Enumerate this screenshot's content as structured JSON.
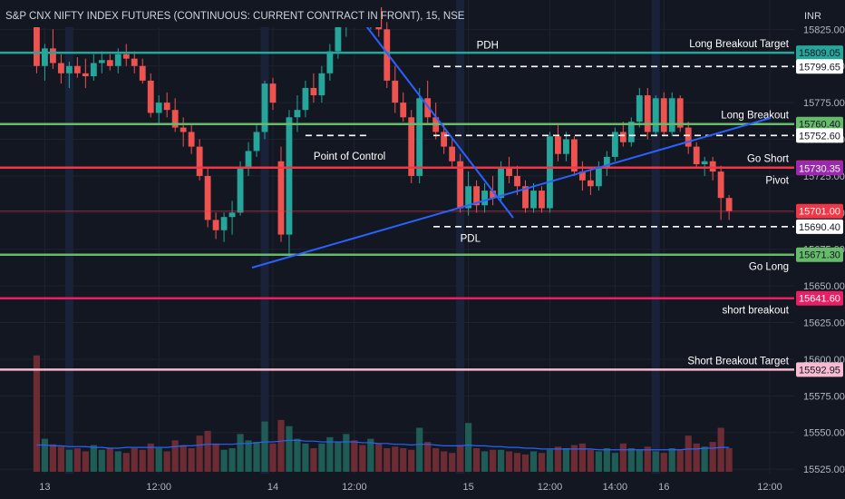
{
  "chart_data": {
    "type": "candlestick",
    "title": "S&P CNX NIFTY INDEX FUTURES (CONTINUOUS: CURRENT CONTRACT IN FRONT), 15, NSE",
    "currency": "INR",
    "y_ticks": [
      15525,
      15550,
      15575,
      15600,
      15625,
      15650,
      15675,
      15700,
      15725,
      15750,
      15775,
      15800,
      15825
    ],
    "ylim": [
      15522,
      15845
    ],
    "x_ticks": [
      {
        "label": "13",
        "i": 1
      },
      {
        "label": "12:00",
        "i": 15
      },
      {
        "label": "14",
        "i": 29
      },
      {
        "label": "12:00",
        "i": 39
      },
      {
        "label": "15",
        "i": 53
      },
      {
        "label": "12:00",
        "i": 63
      },
      {
        "label": "14:00",
        "i": 71
      },
      {
        "label": "16",
        "i": 77
      },
      {
        "label": "12:00",
        "i": 90
      }
    ],
    "x_range": [
      -4.5,
      93
    ],
    "session_starts": [
      4,
      28,
      52,
      76
    ],
    "candles": [
      {
        "o": 15835,
        "h": 15845,
        "l": 15795,
        "c": 15800
      },
      {
        "o": 15800,
        "h": 15815,
        "l": 15790,
        "c": 15812
      },
      {
        "o": 15812,
        "h": 15825,
        "l": 15798,
        "c": 15802
      },
      {
        "o": 15802,
        "h": 15808,
        "l": 15788,
        "c": 15795
      },
      {
        "o": 15795,
        "h": 15803,
        "l": 15785,
        "c": 15800
      },
      {
        "o": 15800,
        "h": 15806,
        "l": 15792,
        "c": 15795
      },
      {
        "o": 15795,
        "h": 15805,
        "l": 15785,
        "c": 15793
      },
      {
        "o": 15793,
        "h": 15808,
        "l": 15790,
        "c": 15802
      },
      {
        "o": 15802,
        "h": 15810,
        "l": 15795,
        "c": 15804
      },
      {
        "o": 15804,
        "h": 15808,
        "l": 15797,
        "c": 15800
      },
      {
        "o": 15800,
        "h": 15812,
        "l": 15795,
        "c": 15808
      },
      {
        "o": 15808,
        "h": 15815,
        "l": 15800,
        "c": 15805
      },
      {
        "o": 15805,
        "h": 15810,
        "l": 15795,
        "c": 15800
      },
      {
        "o": 15800,
        "h": 15805,
        "l": 15788,
        "c": 15790
      },
      {
        "o": 15790,
        "h": 15795,
        "l": 15765,
        "c": 15768
      },
      {
        "o": 15768,
        "h": 15780,
        "l": 15760,
        "c": 15775
      },
      {
        "o": 15775,
        "h": 15782,
        "l": 15765,
        "c": 15770
      },
      {
        "o": 15770,
        "h": 15778,
        "l": 15755,
        "c": 15758
      },
      {
        "o": 15758,
        "h": 15765,
        "l": 15745,
        "c": 15755
      },
      {
        "o": 15755,
        "h": 15760,
        "l": 15740,
        "c": 15745
      },
      {
        "o": 15745,
        "h": 15750,
        "l": 15722,
        "c": 15725
      },
      {
        "o": 15725,
        "h": 15730,
        "l": 15690,
        "c": 15695
      },
      {
        "o": 15695,
        "h": 15700,
        "l": 15682,
        "c": 15688
      },
      {
        "o": 15688,
        "h": 15700,
        "l": 15680,
        "c": 15697
      },
      {
        "o": 15697,
        "h": 15708,
        "l": 15685,
        "c": 15700
      },
      {
        "o": 15700,
        "h": 15735,
        "l": 15698,
        "c": 15730
      },
      {
        "o": 15730,
        "h": 15748,
        "l": 15725,
        "c": 15742
      },
      {
        "o": 15742,
        "h": 15760,
        "l": 15738,
        "c": 15755
      },
      {
        "o": 15755,
        "h": 15790,
        "l": 15750,
        "c": 15788
      },
      {
        "o": 15788,
        "h": 15792,
        "l": 15770,
        "c": 15775
      },
      {
        "o": 15735,
        "h": 15745,
        "l": 15680,
        "c": 15685
      },
      {
        "o": 15685,
        "h": 15770,
        "l": 15670,
        "c": 15765
      },
      {
        "o": 15765,
        "h": 15780,
        "l": 15755,
        "c": 15770
      },
      {
        "o": 15770,
        "h": 15790,
        "l": 15765,
        "c": 15785
      },
      {
        "o": 15785,
        "h": 15795,
        "l": 15775,
        "c": 15780
      },
      {
        "o": 15780,
        "h": 15800,
        "l": 15775,
        "c": 15795
      },
      {
        "o": 15795,
        "h": 15815,
        "l": 15790,
        "c": 15810
      },
      {
        "o": 15810,
        "h": 15830,
        "l": 15805,
        "c": 15828
      },
      {
        "o": 15828,
        "h": 15848,
        "l": 15820,
        "c": 15845
      },
      {
        "o": 15845,
        "h": 15848,
        "l": 15835,
        "c": 15840
      },
      {
        "o": 15840,
        "h": 15848,
        "l": 15830,
        "c": 15835
      },
      {
        "o": 15835,
        "h": 15845,
        "l": 15825,
        "c": 15840
      },
      {
        "o": 15840,
        "h": 15846,
        "l": 15820,
        "c": 15825
      },
      {
        "o": 15825,
        "h": 15830,
        "l": 15785,
        "c": 15790
      },
      {
        "o": 15790,
        "h": 15800,
        "l": 15768,
        "c": 15775
      },
      {
        "o": 15775,
        "h": 15782,
        "l": 15762,
        "c": 15765
      },
      {
        "o": 15765,
        "h": 15770,
        "l": 15720,
        "c": 15725
      },
      {
        "o": 15725,
        "h": 15785,
        "l": 15720,
        "c": 15778
      },
      {
        "o": 15778,
        "h": 15790,
        "l": 15760,
        "c": 15765
      },
      {
        "o": 15765,
        "h": 15775,
        "l": 15750,
        "c": 15755
      },
      {
        "o": 15755,
        "h": 15760,
        "l": 15740,
        "c": 15745
      },
      {
        "o": 15745,
        "h": 15750,
        "l": 15730,
        "c": 15735
      },
      {
        "o": 15735,
        "h": 15740,
        "l": 15700,
        "c": 15703
      },
      {
        "o": 15703,
        "h": 15728,
        "l": 15698,
        "c": 15718
      },
      {
        "o": 15718,
        "h": 15722,
        "l": 15700,
        "c": 15705
      },
      {
        "o": 15705,
        "h": 15720,
        "l": 15700,
        "c": 15715
      },
      {
        "o": 15715,
        "h": 15725,
        "l": 15705,
        "c": 15710
      },
      {
        "o": 15710,
        "h": 15735,
        "l": 15708,
        "c": 15730
      },
      {
        "o": 15730,
        "h": 15738,
        "l": 15720,
        "c": 15725
      },
      {
        "o": 15725,
        "h": 15732,
        "l": 15712,
        "c": 15718
      },
      {
        "o": 15718,
        "h": 15722,
        "l": 15700,
        "c": 15703
      },
      {
        "o": 15703,
        "h": 15720,
        "l": 15700,
        "c": 15715
      },
      {
        "o": 15715,
        "h": 15718,
        "l": 15700,
        "c": 15703
      },
      {
        "o": 15703,
        "h": 15755,
        "l": 15700,
        "c": 15752
      },
      {
        "o": 15752,
        "h": 15760,
        "l": 15735,
        "c": 15740
      },
      {
        "o": 15740,
        "h": 15755,
        "l": 15735,
        "c": 15750
      },
      {
        "o": 15750,
        "h": 15752,
        "l": 15725,
        "c": 15728
      },
      {
        "o": 15728,
        "h": 15735,
        "l": 15715,
        "c": 15722
      },
      {
        "o": 15722,
        "h": 15730,
        "l": 15712,
        "c": 15718
      },
      {
        "o": 15718,
        "h": 15735,
        "l": 15715,
        "c": 15730
      },
      {
        "o": 15730,
        "h": 15742,
        "l": 15725,
        "c": 15738
      },
      {
        "o": 15738,
        "h": 15758,
        "l": 15735,
        "c": 15755
      },
      {
        "o": 15755,
        "h": 15762,
        "l": 15745,
        "c": 15748
      },
      {
        "o": 15748,
        "h": 15765,
        "l": 15745,
        "c": 15762
      },
      {
        "o": 15762,
        "h": 15785,
        "l": 15758,
        "c": 15780
      },
      {
        "o": 15780,
        "h": 15785,
        "l": 15750,
        "c": 15755
      },
      {
        "o": 15755,
        "h": 15780,
        "l": 15752,
        "c": 15778
      },
      {
        "o": 15778,
        "h": 15782,
        "l": 15752,
        "c": 15755
      },
      {
        "o": 15755,
        "h": 15782,
        "l": 15752,
        "c": 15778
      },
      {
        "o": 15778,
        "h": 15780,
        "l": 15755,
        "c": 15758
      },
      {
        "o": 15758,
        "h": 15762,
        "l": 15740,
        "c": 15745
      },
      {
        "o": 15745,
        "h": 15748,
        "l": 15730,
        "c": 15733
      },
      {
        "o": 15733,
        "h": 15738,
        "l": 15725,
        "c": 15735
      },
      {
        "o": 15735,
        "h": 15738,
        "l": 15722,
        "c": 15728
      },
      {
        "o": 15728,
        "h": 15732,
        "l": 15695,
        "c": 15710
      },
      {
        "o": 15710,
        "h": 15712,
        "l": 15695,
        "c": 15701
      }
    ],
    "volume": [
      148,
      42,
      35,
      32,
      28,
      30,
      26,
      34,
      28,
      30,
      26,
      24,
      30,
      28,
      36,
      30,
      26,
      40,
      34,
      30,
      46,
      52,
      36,
      28,
      30,
      48,
      40,
      38,
      64,
      36,
      66,
      58,
      42,
      36,
      30,
      36,
      44,
      38,
      48,
      40,
      34,
      42,
      36,
      30,
      32,
      30,
      28,
      56,
      38,
      30,
      26,
      24,
      34,
      62,
      30,
      26,
      28,
      28,
      26,
      24,
      22,
      26,
      24,
      28,
      32,
      30,
      34,
      36,
      28,
      26,
      30,
      24,
      36,
      30,
      28,
      32,
      26,
      24,
      30,
      28,
      46,
      36,
      32,
      38,
      56,
      30
    ],
    "volume_ma": [
      34,
      34,
      33,
      33,
      32,
      32,
      32,
      31,
      31,
      30,
      30,
      31,
      31,
      31,
      31,
      31,
      31,
      32,
      33,
      33,
      34,
      35,
      35,
      35,
      35,
      36,
      36,
      37,
      38,
      38,
      39,
      40,
      40,
      39,
      39,
      38,
      38,
      38,
      38,
      38,
      37,
      37,
      36,
      36,
      35,
      35,
      34,
      35,
      35,
      34,
      33,
      33,
      33,
      34,
      33,
      33,
      32,
      32,
      31,
      31,
      30,
      30,
      29,
      29,
      29,
      29,
      29,
      29,
      29,
      28,
      28,
      28,
      28,
      28,
      28,
      28,
      28,
      28,
      28,
      28,
      29,
      29,
      30,
      30,
      31,
      31
    ],
    "levels": [
      {
        "label": "Long Breakout Target",
        "price": 15809.05,
        "price_text": "15809.05",
        "color": "#26a69a",
        "style": "solid"
      },
      {
        "label": "",
        "price": 15799.65,
        "price_text": "15799.65",
        "color": "#ffffff",
        "style": "dashed"
      },
      {
        "label": "Long Breakout",
        "price": 15760.4,
        "price_text": "15760.40",
        "color": "#66bb6a",
        "style": "solid"
      },
      {
        "label": "",
        "price": 15752.6,
        "price_text": "15752.60",
        "color": "#ffffff",
        "style": "dashed"
      },
      {
        "label": "Go Short",
        "price": 15730.7,
        "price_text": "15730.70",
        "color": "#f23645",
        "style": "solid"
      },
      {
        "label": "Pivot",
        "price": 15730.35,
        "price_text": "15730.35",
        "color": "#9c27b0",
        "style": "none"
      },
      {
        "label": "",
        "price": 15701.0,
        "price_text": "15701.00",
        "color": "#f23645",
        "style": "thin"
      },
      {
        "label": "",
        "price": 15690.4,
        "price_text": "15690.40",
        "color": "#ffffff",
        "style": "dashed"
      },
      {
        "label": "Go Long",
        "price": 15671.3,
        "price_text": "15671.30",
        "color": "#66bb6a",
        "style": "solid"
      },
      {
        "label": "short breakout",
        "price": 15641.6,
        "price_text": "15641.60",
        "color": "#e91e63",
        "style": "solid"
      },
      {
        "label": "Short  Breakout Target",
        "price": 15592.95,
        "price_text": "15592.95",
        "color": "#f8bbd0",
        "style": "solid"
      }
    ],
    "annotations": [
      {
        "text": "PDH",
        "i": 54,
        "price": 15812
      },
      {
        "text": "Point of Control",
        "i": 34,
        "price": 15736
      },
      {
        "text": "PDL",
        "i": 52,
        "price": 15680
      }
    ]
  }
}
